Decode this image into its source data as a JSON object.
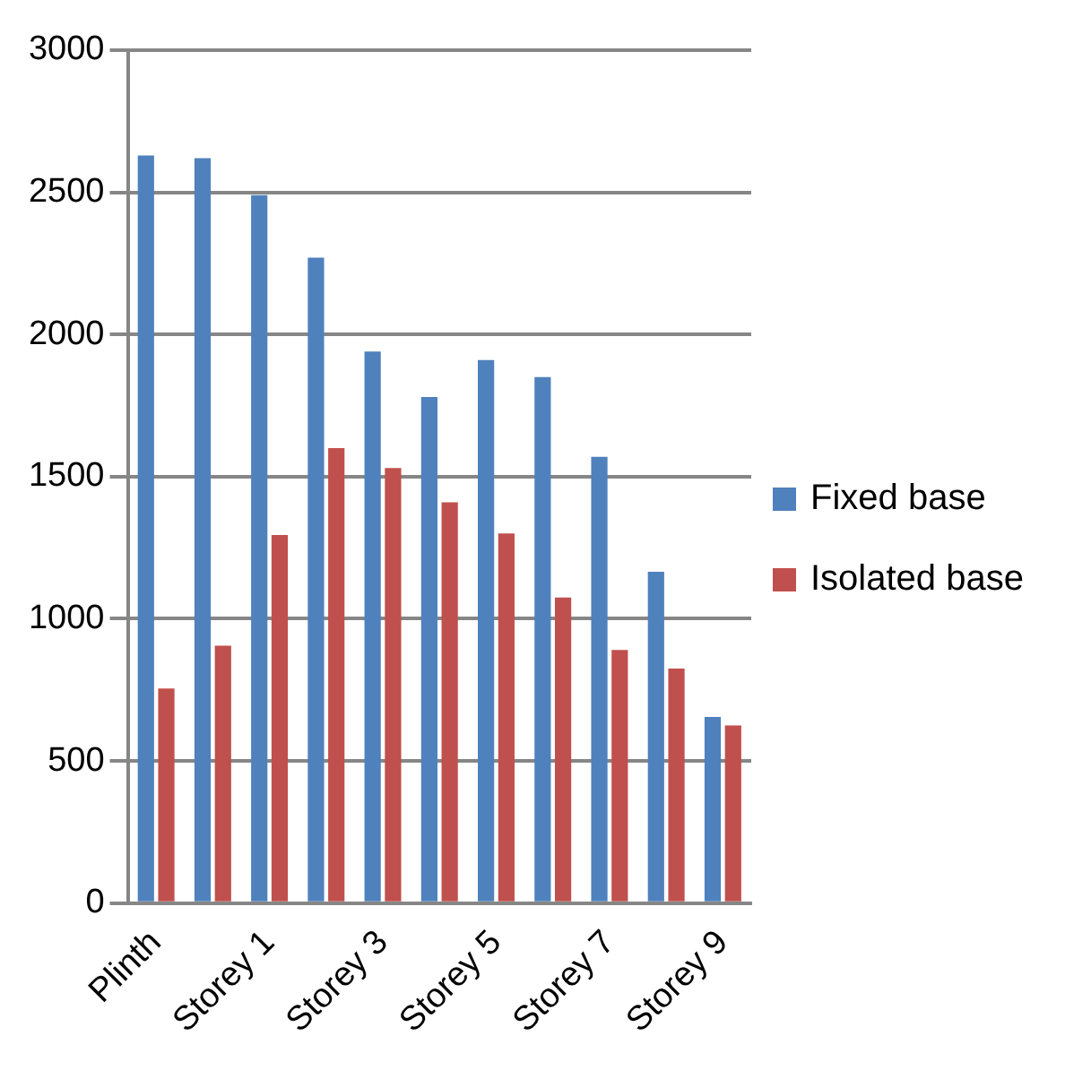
{
  "chart_data": {
    "type": "bar",
    "categories": [
      "Plinth",
      null,
      "Storey 1",
      null,
      "Storey 3",
      null,
      "Storey 5",
      null,
      "Storey 7",
      null,
      "Storey 9"
    ],
    "series": [
      {
        "name": "Fixed base",
        "color": "#4f81bd",
        "values": [
          2630,
          2620,
          2490,
          2270,
          1940,
          1780,
          1910,
          1850,
          1570,
          1165,
          655
        ]
      },
      {
        "name": "Isolated base",
        "color": "#c0504d",
        "values": [
          755,
          905,
          1295,
          1600,
          1530,
          1410,
          1300,
          1075,
          890,
          825,
          625
        ]
      }
    ],
    "ylim": [
      0,
      3000
    ],
    "yticks": [
      0,
      500,
      1000,
      1500,
      2000,
      2500,
      3000
    ],
    "grid": "y",
    "legend": "right"
  }
}
